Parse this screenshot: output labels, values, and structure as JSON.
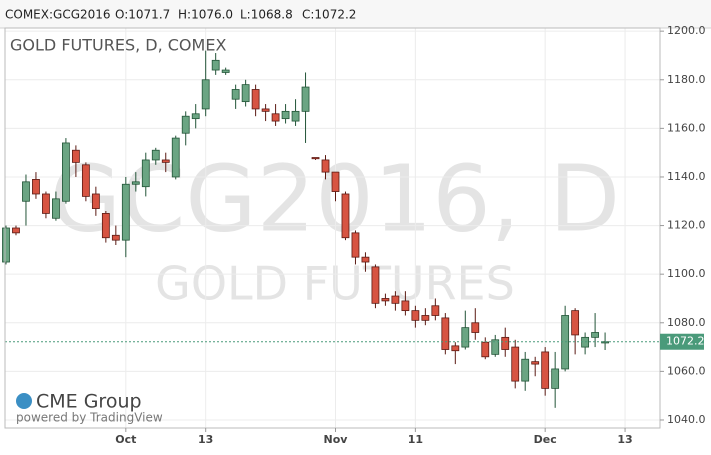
{
  "header": {
    "symbol": "COMEX:GCG2016",
    "open": "O:1071.7",
    "high": "H:1076.0",
    "low": "L:1068.8",
    "close": "C:1072.2"
  },
  "branding": {
    "logo": "CME Group",
    "powered": "powered by TradingView"
  },
  "chart_data": {
    "type": "candlestick",
    "title": "GOLD FUTURES, D, COMEX",
    "watermark": [
      "GCG2016, D",
      "GOLD FUTURES"
    ],
    "open": [
      1105,
      1119,
      1130,
      1139,
      1133,
      1123,
      1130,
      1151,
      1145,
      1133,
      1125,
      1116,
      1114,
      1137,
      1136,
      1147,
      1147,
      1140,
      1158,
      1164,
      1168,
      1184,
      1183,
      1172,
      1171,
      1176,
      1168,
      1166,
      1164,
      1163,
      1167,
      1148,
      1147,
      1142,
      1133,
      1117,
      1107,
      1103,
      1090,
      1091,
      1089,
      1085,
      1083,
      1087,
      1082,
      1070.5,
      1070,
      1080,
      1072,
      1067,
      1074,
      1070,
      1056,
      1064,
      1068,
      1053,
      1061,
      1085,
      1070,
      1074,
      1071.7
    ],
    "high": [
      1120,
      1120,
      1141,
      1142,
      1134,
      1134,
      1156,
      1153,
      1146,
      1136,
      1126,
      1120,
      1140,
      1142,
      1150,
      1152,
      1150,
      1157,
      1167,
      1170,
      1192,
      1191,
      1185,
      1178,
      1180,
      1178,
      1170,
      1170,
      1170,
      1172,
      1183,
      1148,
      1149,
      1142,
      1134,
      1118,
      1109,
      1104,
      1092,
      1093,
      1093,
      1087,
      1086,
      1090,
      1084,
      1072,
      1085,
      1086,
      1074,
      1075,
      1078,
      1073,
      1068,
      1066,
      1070,
      1068,
      1087,
      1086,
      1076,
      1084,
      1076.0
    ],
    "low": [
      1104,
      1116,
      1120,
      1131,
      1123,
      1122,
      1129,
      1140,
      1130,
      1124,
      1113,
      1112,
      1107,
      1134,
      1132,
      1145,
      1142,
      1139,
      1153,
      1160,
      1165,
      1182,
      1182,
      1168,
      1169,
      1165,
      1163,
      1161,
      1162,
      1161,
      1154,
      1147,
      1139,
      1130,
      1114,
      1104,
      1101,
      1086,
      1087,
      1085,
      1083,
      1078,
      1079,
      1081,
      1067,
      1063,
      1069,
      1073,
      1065,
      1066,
      1066,
      1053,
      1052,
      1058,
      1050,
      1045,
      1060,
      1067,
      1067,
      1070,
      1068.8
    ],
    "close": [
      1119,
      1117,
      1138,
      1133,
      1125,
      1131,
      1154,
      1146,
      1132,
      1127,
      1115,
      1114,
      1137,
      1138,
      1147,
      1151,
      1146,
      1156,
      1165,
      1166,
      1180,
      1188,
      1184,
      1176,
      1178,
      1168,
      1167,
      1163,
      1167,
      1167,
      1177,
      1147.5,
      1142,
      1134,
      1115,
      1107,
      1105,
      1088,
      1089,
      1088,
      1085,
      1081,
      1081,
      1083,
      1069,
      1068.5,
      1078,
      1076,
      1066,
      1073,
      1069,
      1056,
      1065,
      1063,
      1053,
      1061,
      1083,
      1075,
      1074,
      1076,
      1072.2
    ],
    "up_color": "#6ba583",
    "down_color": "#d75442",
    "ylim": [
      1036.7,
      1201.3
    ],
    "yticks": [
      {
        "value": 1040,
        "label": "1040.0"
      },
      {
        "value": 1060,
        "label": "1060.0"
      },
      {
        "value": 1080,
        "label": "1080.0"
      },
      {
        "value": 1100,
        "label": "1100.0"
      },
      {
        "value": 1120,
        "label": "1120.0"
      },
      {
        "value": 1140,
        "label": "1140.0"
      },
      {
        "value": 1160,
        "label": "1160.0"
      },
      {
        "value": 1180,
        "label": "1180.0"
      },
      {
        "value": 1200,
        "label": "1200.0"
      }
    ],
    "xlim": [
      -0.1,
      65.5
    ],
    "xticks": [
      {
        "value": 12,
        "label": "Oct"
      },
      {
        "value": 20,
        "label": "13"
      },
      {
        "value": 33,
        "label": "Nov"
      },
      {
        "value": 41,
        "label": "11"
      },
      {
        "value": 54,
        "label": "Dec"
      },
      {
        "value": 62,
        "label": "13"
      }
    ],
    "grid": true,
    "last_price_color": "#4a9a7a"
  }
}
